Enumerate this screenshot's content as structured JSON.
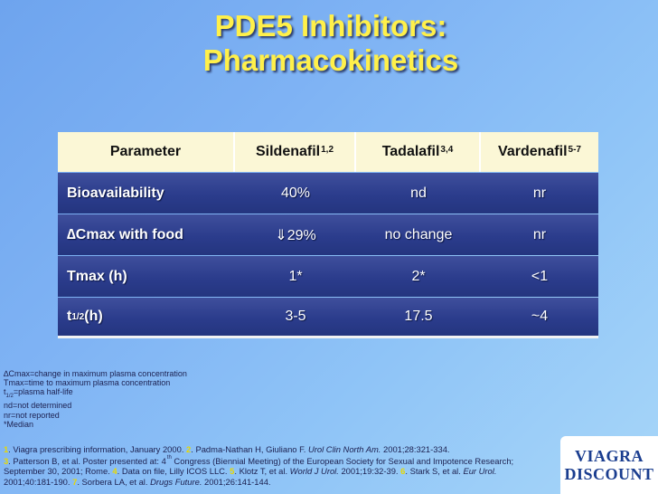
{
  "title": {
    "line1": "PDE5 Inhibitors:",
    "line2": "Pharmacokinetics"
  },
  "table": {
    "headers": {
      "parameter": "Parameter",
      "sildenafil": "Sildenafil",
      "sildenafil_sup": "1,2",
      "tadalafil": "Tadalafil",
      "tadalafil_sup": "3,4",
      "vardenafil": "Vardenafil",
      "vardenafil_sup": "5-7"
    },
    "rows": [
      {
        "param": "Bioavailability",
        "param_sub": "",
        "param_suffix": "",
        "sildenafil": "40%",
        "tadalafil": "nd",
        "vardenafil": "nr"
      },
      {
        "param": "∆Cmax with food",
        "param_sub": "",
        "param_suffix": "",
        "sildenafil": "⇓29%",
        "tadalafil": "no change",
        "vardenafil": "nr"
      },
      {
        "param": "Tmax (h)",
        "param_sub": "",
        "param_suffix": "",
        "sildenafil": "1*",
        "tadalafil": "2*",
        "vardenafil": "<1"
      },
      {
        "param": "t",
        "param_sub": "1/2",
        "param_suffix": " (h)",
        "sildenafil": "3-5",
        "tadalafil": "17.5",
        "vardenafil": "~4"
      }
    ]
  },
  "notes": {
    "line1": "∆Cmax=change in maximum plasma concentration",
    "line2": "Tmax=time to maximum plasma concentration",
    "line3_a": "t",
    "line3_sub": "1/2",
    "line3_b": "=plasma half-life",
    "line4": "nd=not determined",
    "line5": "nr=not reported",
    "line6": "*Median"
  },
  "references": {
    "n1": "1",
    "t1": ". Viagra prescribing information, January 2000. ",
    "n2": "2",
    "t2": ". Padma-Nathan H, Giuliano F. ",
    "j2": "Urol Clin North Am.",
    "t2b": " 2001;28:321-334.",
    "n3": "3",
    "t3": ". Patterson B, et al. Poster presented at: 4",
    "t3sup": "th",
    "t3b": " Congress (Biennial Meeting) of the European Society for Sexual and Impotence Research; September 30, 2001; Rome. ",
    "n4": "4",
    "t4": ". Data on file, Lilly ICOS LLC. ",
    "n5": "5",
    "t5": ". Klotz T, et al. ",
    "j5": "World J Urol.",
    "t5b": " 2001;19:32-39. ",
    "n6": "6",
    "t6": ". Stark S, et al. ",
    "j6": "Eur Urol.",
    "t6b": " 2001;40:181-190. ",
    "n7": "7",
    "t7": ". Sorbera LA, et al. ",
    "j7": "Drugs Future.",
    "t7b": " 2001;26:141-144."
  },
  "logo": {
    "line1": "VIAGRA",
    "line2": "DISCOUNT"
  }
}
